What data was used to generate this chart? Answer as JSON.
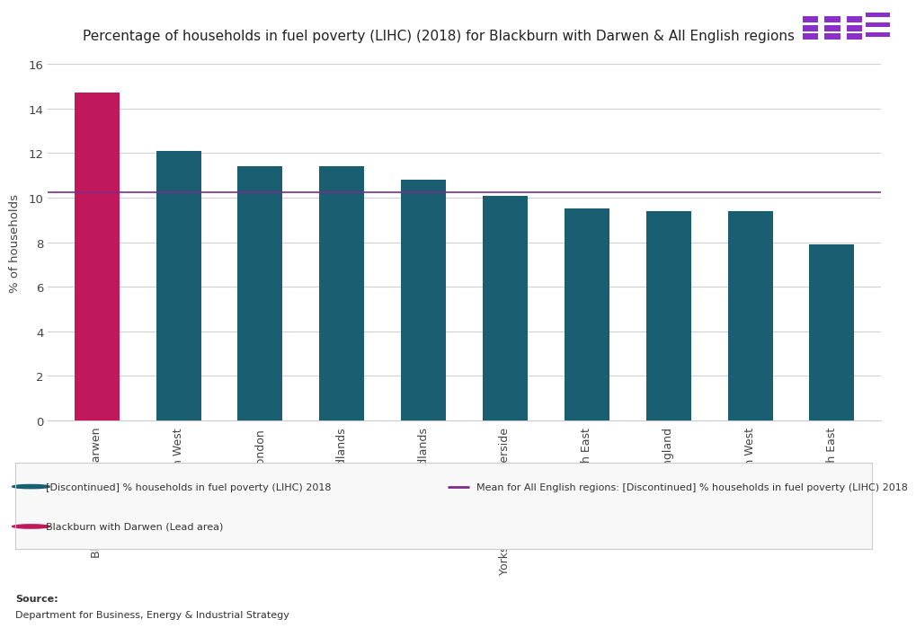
{
  "title": "Percentage of households in fuel poverty (LIHC) (2018) for Blackburn with Darwen & All English regions",
  "categories": [
    "Blackburn with Darwen",
    "North West",
    "London",
    "West Midlands",
    "East Midlands",
    "Yorkshire and Humberside",
    "North East",
    "East of England",
    "South West",
    "South East"
  ],
  "values": [
    14.7,
    12.1,
    11.4,
    11.4,
    10.8,
    10.1,
    9.5,
    9.4,
    9.4,
    7.9
  ],
  "bar_colors": [
    "#c0185a",
    "#1a5e72",
    "#1a5e72",
    "#1a5e72",
    "#1a5e72",
    "#1a5e72",
    "#1a5e72",
    "#1a5e72",
    "#1a5e72",
    "#1a5e72"
  ],
  "mean_line": 10.25,
  "mean_line_color": "#7b2d8b",
  "ylabel": "% of households",
  "ylim": [
    0,
    16
  ],
  "yticks": [
    0,
    2,
    4,
    6,
    8,
    10,
    12,
    14,
    16
  ],
  "legend_bar_label": "[Discontinued] % households in fuel poverty (LIHC) 2018",
  "legend_line_label": "Mean for All English regions: [Discontinued] % households in fuel poverty (LIHC) 2018",
  "legend_lead_label": "Blackburn with Darwen (Lead area)",
  "teal_color": "#1a5e72",
  "pink_color": "#c0185a",
  "source_label": "Source:",
  "source_body": "Department for Business, Energy & Industrial Strategy",
  "background_color": "#ffffff",
  "grid_color": "#d0d0d0",
  "legend_bg": "#f8f8f8",
  "legend_border": "#cccccc"
}
